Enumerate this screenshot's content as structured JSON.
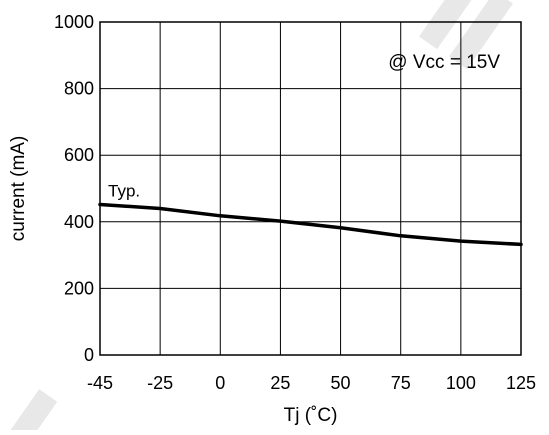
{
  "chart_data": {
    "type": "line",
    "title": "",
    "xlabel": "Tj (˚C)",
    "ylabel": "current (mA)",
    "x_ticks": [
      -45,
      -25,
      0,
      25,
      50,
      75,
      100,
      125
    ],
    "y_ticks": [
      0,
      200,
      400,
      600,
      800,
      1000
    ],
    "x_tick_labels": [
      "-45",
      "-25",
      "0",
      "25",
      "50",
      "75",
      "100",
      "125"
    ],
    "y_tick_labels": [
      "0",
      "200",
      "400",
      "600",
      "800",
      "1000"
    ],
    "xlim": [
      -45,
      125
    ],
    "ylim": [
      0,
      1000
    ],
    "grid": true,
    "annotation": "@ Vcc = 15V",
    "series": [
      {
        "name": "Typ.",
        "x": [
          -45,
          -25,
          0,
          25,
          50,
          75,
          100,
          125
        ],
        "y": [
          452,
          440,
          418,
          402,
          382,
          358,
          342,
          332
        ]
      }
    ]
  },
  "colors": {
    "line": "#000000",
    "grid": "#000000",
    "background": "#ffffff"
  }
}
